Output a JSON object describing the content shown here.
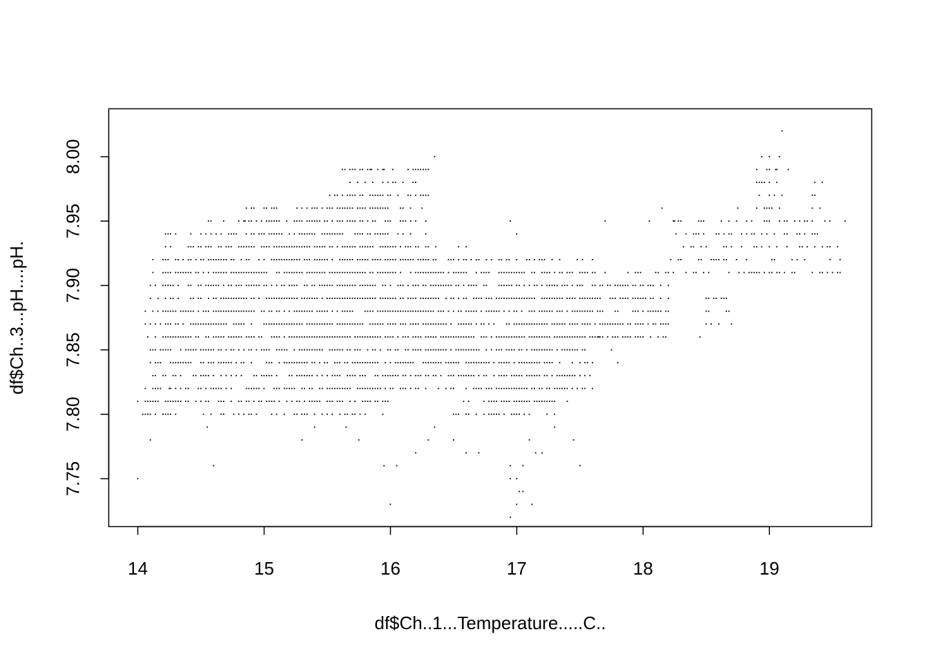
{
  "chart_data": {
    "type": "scatter",
    "title": "",
    "xlabel": "df$Ch..1...Temperature.....C..",
    "ylabel": "df$Ch..3...pH....pH.",
    "xlim": [
      13.77,
      19.81
    ],
    "ylim": [
      7.7128,
      8.0372
    ],
    "xticks": [
      14,
      15,
      16,
      17,
      18,
      19
    ],
    "yticks": [
      7.75,
      7.8,
      7.85,
      7.9,
      7.95,
      8.0
    ],
    "ytick_labels": [
      "7.75",
      "7.80",
      "7.85",
      "7.90",
      "7.95",
      "8.00"
    ],
    "marker_color": "#000000",
    "clusters": [
      {
        "x": [
          14.0,
          14.15
        ],
        "y": [
          7.8,
          7.82
        ]
      },
      {
        "x": [
          14.05,
          14.35
        ],
        "y": [
          7.8,
          7.88
        ]
      },
      {
        "x": [
          14.1,
          14.7
        ],
        "y": [
          7.81,
          7.92
        ]
      },
      {
        "x": [
          14.2,
          14.9
        ],
        "y": [
          7.84,
          7.94
        ]
      },
      {
        "x": [
          14.5,
          15.3
        ],
        "y": [
          7.8,
          7.95
        ]
      },
      {
        "x": [
          14.8,
          15.6
        ],
        "y": [
          7.85,
          7.96
        ]
      },
      {
        "x": [
          15.0,
          15.9
        ],
        "y": [
          7.81,
          7.94
        ]
      },
      {
        "x": [
          15.3,
          16.0
        ],
        "y": [
          7.8,
          7.97
        ]
      },
      {
        "x": [
          15.6,
          16.3
        ],
        "y": [
          7.87,
          7.99
        ]
      },
      {
        "x": [
          15.2,
          16.6
        ],
        "y": [
          7.83,
          7.93
        ]
      },
      {
        "x": [
          16.0,
          16.5
        ],
        "y": [
          7.82,
          7.92
        ]
      },
      {
        "x": [
          16.3,
          17.0
        ],
        "y": [
          7.84,
          7.92
        ]
      },
      {
        "x": [
          16.5,
          17.3
        ],
        "y": [
          7.8,
          7.91
        ]
      },
      {
        "x": [
          16.6,
          17.55
        ],
        "y": [
          7.81,
          7.89
        ]
      },
      {
        "x": [
          16.9,
          17.6
        ],
        "y": [
          7.82,
          7.92
        ]
      },
      {
        "x": [
          17.3,
          18.2
        ],
        "y": [
          7.86,
          7.91
        ]
      },
      {
        "x": [
          17.6,
          18.1
        ],
        "y": [
          7.87,
          7.9
        ]
      },
      {
        "x": [
          18.2,
          19.0
        ],
        "y": [
          7.91,
          7.95
        ]
      },
      {
        "x": [
          18.5,
          18.7
        ],
        "y": [
          7.87,
          7.89
        ]
      },
      {
        "x": [
          18.9,
          19.1
        ],
        "y": [
          7.96,
          8.0
        ]
      },
      {
        "x": [
          19.0,
          19.6
        ],
        "y": [
          7.91,
          7.95
        ]
      },
      {
        "x": [
          19.3,
          19.45
        ],
        "y": [
          7.96,
          7.98
        ]
      }
    ],
    "points": [
      [
        14.0,
        7.75
      ],
      [
        14.1,
        7.78
      ],
      [
        14.25,
        7.82
      ],
      [
        14.3,
        7.94
      ],
      [
        14.55,
        7.79
      ],
      [
        14.6,
        7.76
      ],
      [
        15.3,
        7.78
      ],
      [
        15.4,
        7.79
      ],
      [
        15.65,
        7.79
      ],
      [
        15.75,
        7.78
      ],
      [
        15.95,
        7.76
      ],
      [
        16.0,
        7.73
      ],
      [
        16.05,
        7.76
      ],
      [
        16.2,
        7.77
      ],
      [
        16.3,
        7.78
      ],
      [
        16.35,
        7.79
      ],
      [
        16.35,
        8.0
      ],
      [
        16.3,
        7.99
      ],
      [
        16.5,
        7.78
      ],
      [
        16.6,
        7.77
      ],
      [
        16.7,
        7.77
      ],
      [
        16.95,
        7.72
      ],
      [
        16.95,
        7.75
      ],
      [
        17.0,
        7.73
      ],
      [
        17.02,
        7.74
      ],
      [
        17.05,
        7.74
      ],
      [
        17.0,
        7.75
      ],
      [
        16.95,
        7.76
      ],
      [
        17.05,
        7.76
      ],
      [
        17.1,
        7.78
      ],
      [
        17.12,
        7.73
      ],
      [
        17.15,
        7.77
      ],
      [
        17.2,
        7.77
      ],
      [
        17.3,
        7.79
      ],
      [
        17.45,
        7.78
      ],
      [
        17.5,
        7.76
      ],
      [
        17.65,
        7.86
      ],
      [
        17.75,
        7.85
      ],
      [
        17.8,
        7.84
      ],
      [
        16.95,
        7.95
      ],
      [
        17.0,
        7.94
      ],
      [
        18.0,
        7.86
      ],
      [
        18.15,
        7.96
      ],
      [
        18.45,
        7.86
      ],
      [
        18.75,
        7.96
      ],
      [
        19.1,
        8.02
      ],
      [
        19.05,
        7.99
      ],
      [
        19.15,
        7.99
      ],
      [
        19.08,
        8.0
      ],
      [
        17.7,
        7.95
      ],
      [
        18.05,
        7.95
      ],
      [
        18.25,
        7.95
      ],
      [
        16.1,
        7.88
      ],
      [
        15.85,
        7.99
      ],
      [
        15.7,
        7.99
      ],
      [
        15.95,
        7.99
      ],
      [
        16.25,
        7.96
      ],
      [
        14.85,
        7.95
      ]
    ]
  }
}
